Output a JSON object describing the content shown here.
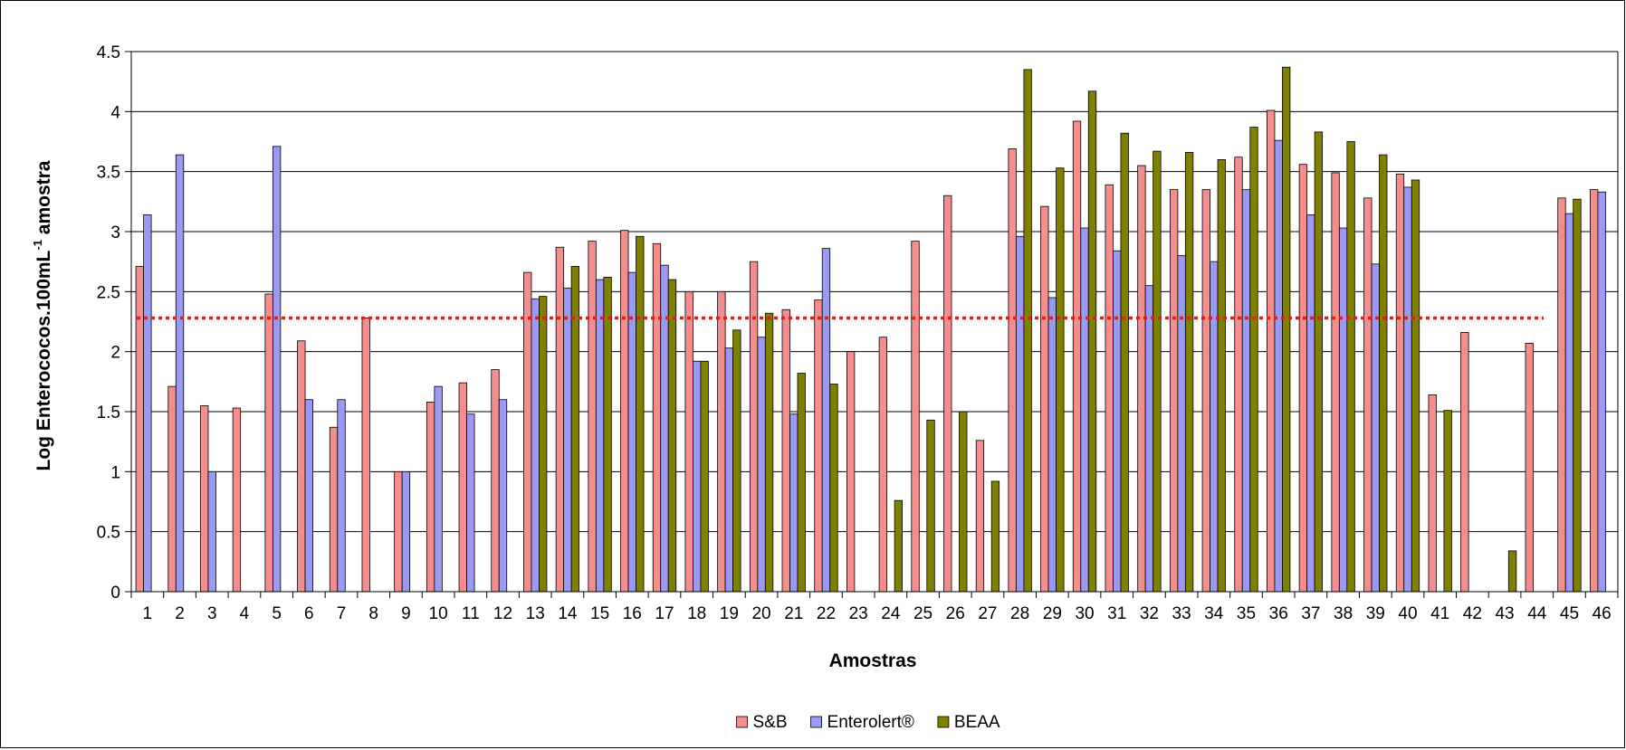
{
  "chart_data": {
    "type": "bar",
    "xlabel": "Amostras",
    "ylabel": "Log Enterococos.100mL",
    "ylabel_superscript": "-1",
    "ylabel_suffix": " amostra",
    "ylim": [
      0,
      4.5
    ],
    "yticks": [
      0,
      0.5,
      1,
      1.5,
      2,
      2.5,
      3,
      3.5,
      4,
      4.5
    ],
    "ytick_labels": [
      "0",
      "0.5",
      "1",
      "1.5",
      "2",
      "2.5",
      "3",
      "3.5",
      "4",
      "4.5"
    ],
    "grid": true,
    "legend_position": "bottom-center",
    "reference_line": {
      "y": 2.28,
      "color": "#E31A1C",
      "style": "dotted"
    },
    "categories": [
      "1",
      "2",
      "3",
      "4",
      "5",
      "6",
      "7",
      "8",
      "9",
      "10",
      "11",
      "12",
      "13",
      "14",
      "15",
      "16",
      "17",
      "18",
      "19",
      "20",
      "21",
      "22",
      "23",
      "24",
      "25",
      "26",
      "27",
      "28",
      "29",
      "30",
      "31",
      "32",
      "33",
      "34",
      "35",
      "36",
      "37",
      "38",
      "39",
      "40",
      "41",
      "42",
      "43",
      "44",
      "45",
      "46"
    ],
    "series": [
      {
        "name": "S&B",
        "color": "#F58D8D",
        "values": [
          2.71,
          1.71,
          1.55,
          1.53,
          2.48,
          2.09,
          1.37,
          2.28,
          1.0,
          1.58,
          1.74,
          1.85,
          2.66,
          2.87,
          2.92,
          3.01,
          2.9,
          2.5,
          2.5,
          2.75,
          2.35,
          2.43,
          2.0,
          2.12,
          2.92,
          3.3,
          1.26,
          3.69,
          3.21,
          3.92,
          3.39,
          3.55,
          3.35,
          3.35,
          3.62,
          4.01,
          3.56,
          3.49,
          3.28,
          3.48,
          1.64,
          2.16,
          null,
          2.07,
          3.28,
          3.35
        ]
      },
      {
        "name": "Enterolert®",
        "color": "#9A9AF5",
        "values": [
          3.14,
          3.64,
          1.0,
          null,
          3.71,
          1.6,
          1.6,
          null,
          1.0,
          1.71,
          1.48,
          1.6,
          2.44,
          2.53,
          2.6,
          2.66,
          2.72,
          1.92,
          2.03,
          2.12,
          1.48,
          2.86,
          null,
          null,
          null,
          null,
          null,
          2.96,
          2.45,
          3.03,
          2.84,
          2.55,
          2.8,
          2.75,
          3.35,
          3.76,
          3.14,
          3.03,
          2.73,
          3.37,
          null,
          null,
          null,
          null,
          3.15,
          3.33
        ]
      },
      {
        "name": "BEAA",
        "color": "#808000",
        "values": [
          null,
          null,
          null,
          null,
          null,
          null,
          null,
          null,
          null,
          null,
          null,
          null,
          2.46,
          2.71,
          2.62,
          2.96,
          2.6,
          1.92,
          2.18,
          2.32,
          1.82,
          1.73,
          null,
          0.76,
          1.43,
          1.5,
          0.92,
          4.35,
          3.53,
          4.17,
          3.82,
          3.67,
          3.66,
          3.6,
          3.87,
          4.37,
          3.83,
          3.75,
          3.64,
          3.43,
          1.51,
          null,
          0.34,
          null,
          3.27,
          null
        ]
      }
    ]
  }
}
